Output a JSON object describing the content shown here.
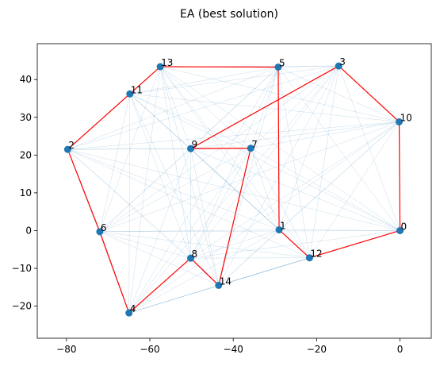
{
  "chart_data": {
    "type": "scatter",
    "title": "EA (best solution)",
    "xlabel": "",
    "ylabel": "",
    "xlim": [
      -87,
      7.5
    ],
    "ylim": [
      -28.5,
      49.5
    ],
    "xticks": [
      -80,
      -60,
      -40,
      -20,
      0
    ],
    "yticks": [
      -20,
      -10,
      0,
      10,
      20,
      30,
      40
    ],
    "grid": false,
    "legend": "none",
    "points": [
      {
        "label": "0",
        "x": 0,
        "y": 0
      },
      {
        "label": "1",
        "x": -29,
        "y": 0.2
      },
      {
        "label": "2",
        "x": -79.7,
        "y": 21.5
      },
      {
        "label": "3",
        "x": -14.7,
        "y": 43.6
      },
      {
        "label": "4",
        "x": -65,
        "y": -21.8
      },
      {
        "label": "5",
        "x": -29.2,
        "y": 43.3
      },
      {
        "label": "6",
        "x": -72,
        "y": -0.3
      },
      {
        "label": "7",
        "x": -35.8,
        "y": 21.8
      },
      {
        "label": "8",
        "x": -50.2,
        "y": -7.3
      },
      {
        "label": "9",
        "x": -50.2,
        "y": 21.7
      },
      {
        "label": "10",
        "x": -0.2,
        "y": 28.8
      },
      {
        "label": "11",
        "x": -64.8,
        "y": 36.2
      },
      {
        "label": "12",
        "x": -21.7,
        "y": -7.2
      },
      {
        "label": "13",
        "x": -57.5,
        "y": 43.4
      },
      {
        "label": "14",
        "x": -43.5,
        "y": -14.5
      }
    ],
    "tour": [
      0,
      10,
      3,
      9,
      7,
      14,
      8,
      4,
      6,
      2,
      11,
      13,
      5,
      1,
      12,
      0
    ],
    "colors": {
      "points": "#1f77b4",
      "tour": "#ff0000",
      "edges": "#1f77b4"
    }
  }
}
